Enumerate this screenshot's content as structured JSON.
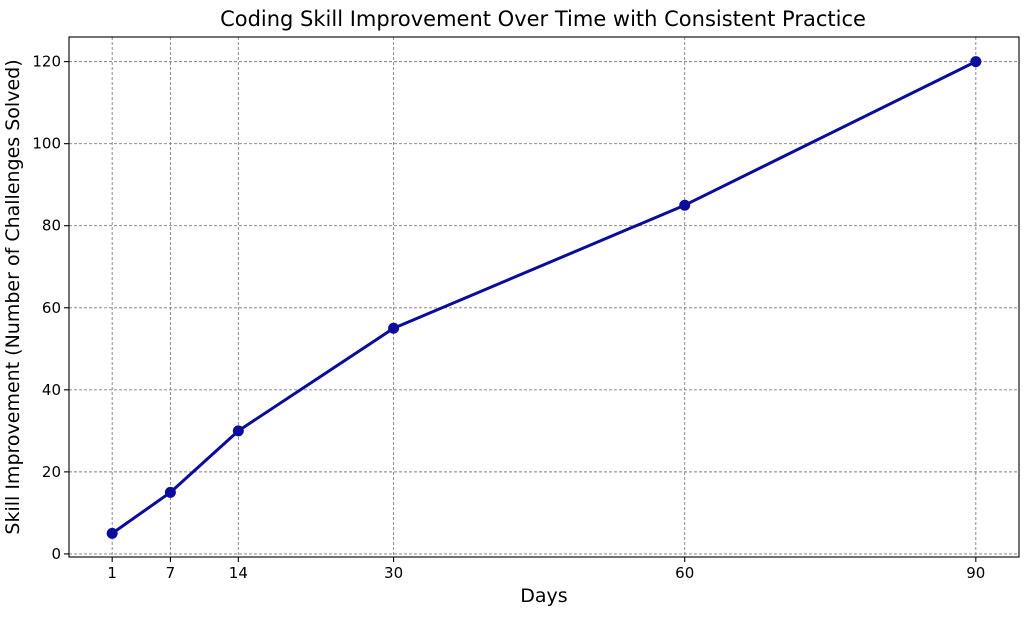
{
  "chart_data": {
    "type": "line",
    "title": "Coding Skill Improvement Over Time with Consistent Practice",
    "xlabel": "Days",
    "ylabel": "Skill Improvement (Number of Challenges Solved)",
    "x": [
      1,
      7,
      14,
      30,
      60,
      90
    ],
    "series": [
      {
        "values": [
          5,
          15,
          30,
          55,
          85,
          120
        ],
        "color": "#0c0c9c",
        "marker": "circle"
      }
    ],
    "xticks": [
      "1",
      "7",
      "14",
      "30",
      "60",
      "90"
    ],
    "yticks": [
      "0",
      "20",
      "40",
      "60",
      "80",
      "100",
      "120"
    ],
    "xlim": [
      -3.45,
      94.45
    ],
    "ylim": [
      -0.75,
      126
    ],
    "grid": true,
    "grid_style": "dashed"
  }
}
